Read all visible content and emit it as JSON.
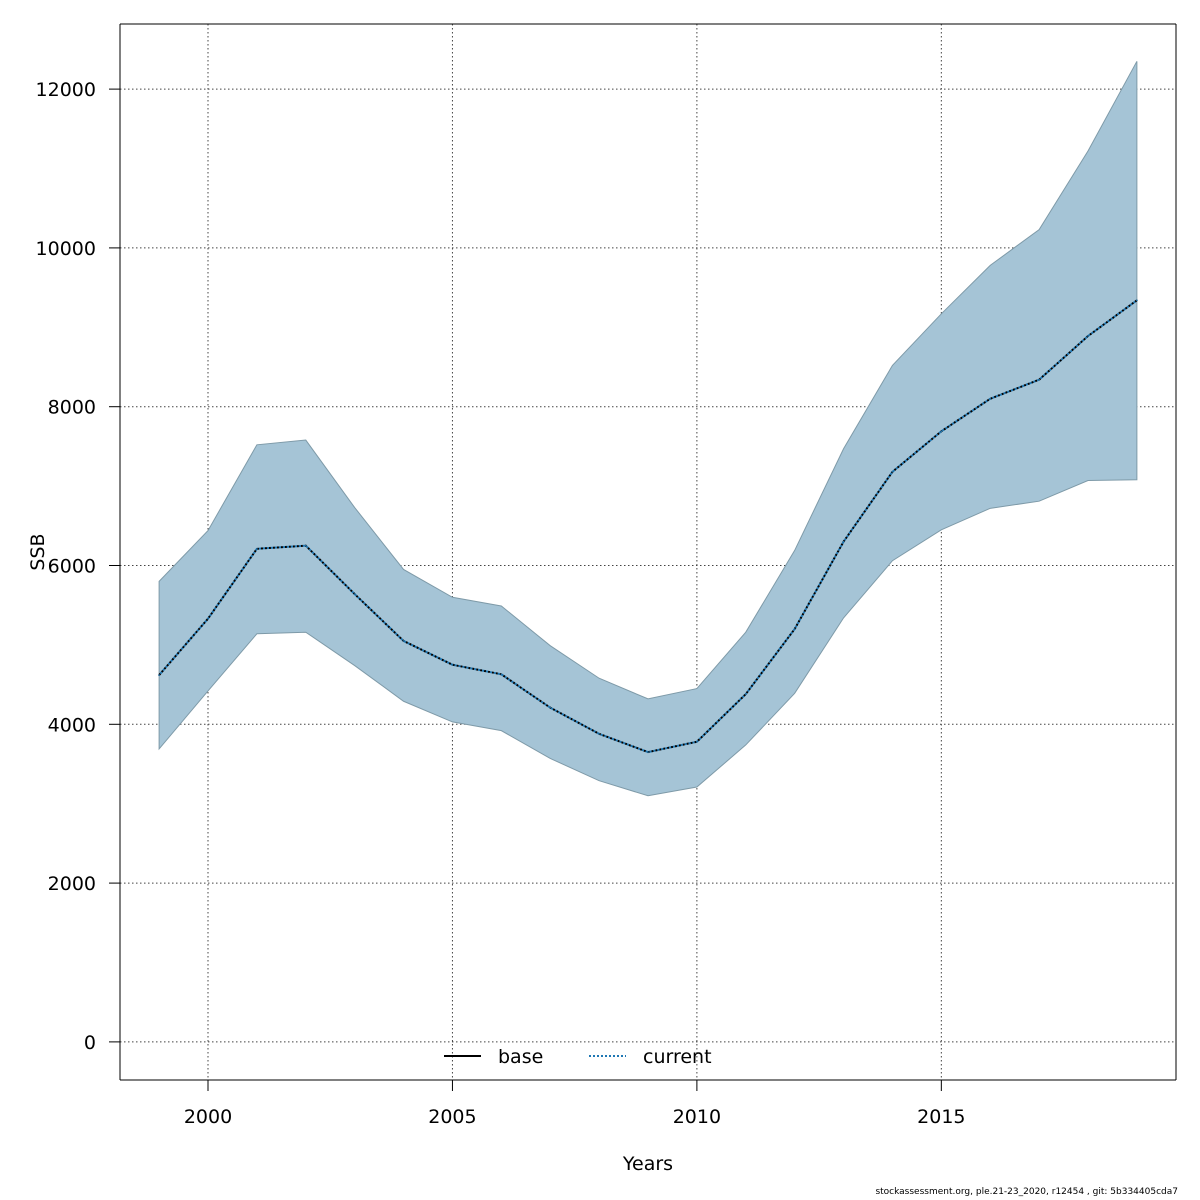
{
  "chart_data": {
    "type": "line",
    "xlabel": "Years",
    "ylabel": "SSB",
    "xlim": [
      1998.2,
      2019.8
    ],
    "ylim": [
      -480,
      12820
    ],
    "xticks": [
      2000,
      2005,
      2010,
      2015
    ],
    "yticks": [
      0,
      2000,
      4000,
      6000,
      8000,
      10000,
      12000
    ],
    "grid": true,
    "legend_position": "bottom-center",
    "x": [
      1999,
      2000,
      2001,
      2002,
      2003,
      2004,
      2005,
      2006,
      2007,
      2008,
      2009,
      2010,
      2011,
      2012,
      2013,
      2014,
      2015,
      2016,
      2017,
      2018,
      2019
    ],
    "series": [
      {
        "name": "base",
        "line_style": "solid",
        "color": "#000000",
        "values": [
          4620,
          5330,
          6210,
          6250,
          5640,
          5050,
          4750,
          4630,
          4210,
          3880,
          3650,
          3780,
          4380,
          5200,
          6300,
          7180,
          7690,
          8100,
          8340,
          8890,
          9340
        ]
      },
      {
        "name": "current",
        "line_style": "dotted",
        "color": "#1f78b4",
        "values": [
          4620,
          5330,
          6210,
          6250,
          5640,
          5050,
          4750,
          4630,
          4210,
          3880,
          3650,
          3780,
          4380,
          5200,
          6300,
          7180,
          7690,
          8100,
          8340,
          8890,
          9340
        ]
      }
    ],
    "band": {
      "lower": [
        3690,
        4420,
        5140,
        5160,
        4740,
        4290,
        4030,
        3920,
        3570,
        3290,
        3100,
        3210,
        3740,
        4390,
        5340,
        6060,
        6450,
        6720,
        6810,
        7070,
        7080
      ],
      "upper": [
        5800,
        6440,
        7520,
        7580,
        6730,
        5950,
        5600,
        5490,
        4990,
        4580,
        4320,
        4450,
        5160,
        6190,
        7470,
        8520,
        9170,
        9780,
        10230,
        11220,
        12350
      ],
      "fill_color": "#a5c4d6",
      "edge_color": "#7e9aa8"
    }
  },
  "footer_text": "stockassessment.org, ple.21-23_2020, r12454 , git: 5b334405cda7"
}
